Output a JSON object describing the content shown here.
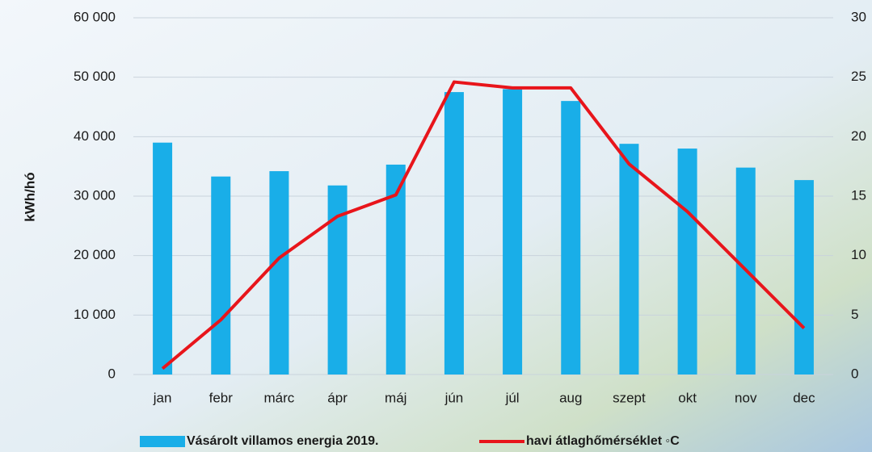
{
  "chart_data": {
    "type": "bar-line",
    "categories": [
      "jan",
      "febr",
      "márc",
      "ápr",
      "máj",
      "jún",
      "júl",
      "aug",
      "szept",
      "okt",
      "nov",
      "dec"
    ],
    "y_label": "kWh/hó",
    "series": [
      {
        "name": "Vásárolt villamos energia 2019.",
        "type": "bar",
        "color": "#19aee8",
        "values": [
          39000,
          33300,
          34200,
          31800,
          35300,
          47500,
          48000,
          46000,
          38800,
          38000,
          34800,
          32700
        ]
      },
      {
        "name": "havi átlaghőmérséklet ◦C",
        "type": "line",
        "axis": "y2",
        "color": "#e8151b",
        "values": [
          0.5,
          4.6,
          9.8,
          13.3,
          15.1,
          24.6,
          24.1,
          24.1,
          17.7,
          13.7,
          8.8,
          3.9
        ]
      }
    ],
    "ylim": [
      0,
      60000
    ],
    "yticks": [
      0,
      {
        "value": 10000,
        "label": "10 000"
      },
      {
        "value": 20000,
        "label": "20 000"
      },
      {
        "value": 30000,
        "label": "30 000"
      },
      {
        "value": 40000,
        "label": "40 000"
      },
      {
        "value": 50000,
        "label": "50 000"
      },
      {
        "value": 60000,
        "label": "60 000"
      }
    ],
    "y2lim": [
      0,
      30
    ],
    "y2ticks": [
      0,
      5,
      10,
      15,
      20,
      25,
      30
    ],
    "grid": true
  }
}
